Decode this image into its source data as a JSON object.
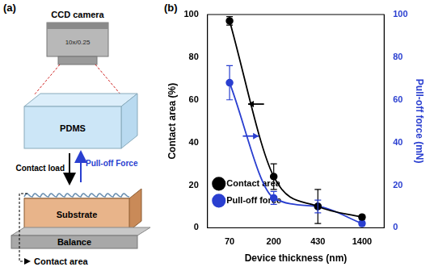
{
  "panels": {
    "a": "(a)",
    "b": "(b)"
  },
  "diagram": {
    "camera": "CCD camera",
    "objective": "10x/0.25",
    "stamp": "PDMS",
    "load": "Contact load",
    "force": "Pull-off Force",
    "substrate": "Substrate",
    "balance": "Balance",
    "area": "Contact area"
  },
  "chart_data": {
    "type": "line",
    "x_label": "Device thickness (nm)",
    "y_label": "Contact area (%)",
    "y2_label": "Pull-off force (mN)",
    "categories": [
      "70",
      "200",
      "430",
      "1400"
    ],
    "series": [
      {
        "name": "Contact area",
        "color": "#000000",
        "values": [
          97,
          24,
          10,
          5
        ],
        "errors": [
          2,
          6,
          8,
          1
        ],
        "marker": "circle"
      },
      {
        "name": "Pull-off force",
        "color": "#2a3fd0",
        "axis": "y2",
        "values": [
          68,
          14,
          10,
          2
        ],
        "errors": [
          8,
          3,
          3,
          1
        ],
        "marker": "circle"
      }
    ],
    "ylim": [
      0,
      100
    ],
    "yticks": [
      0,
      20,
      40,
      60,
      80,
      100
    ],
    "y2lim": [
      0,
      100
    ],
    "y2ticks": [
      0,
      20,
      40,
      60,
      80,
      100
    ],
    "grid": false,
    "legend": "upper right"
  }
}
